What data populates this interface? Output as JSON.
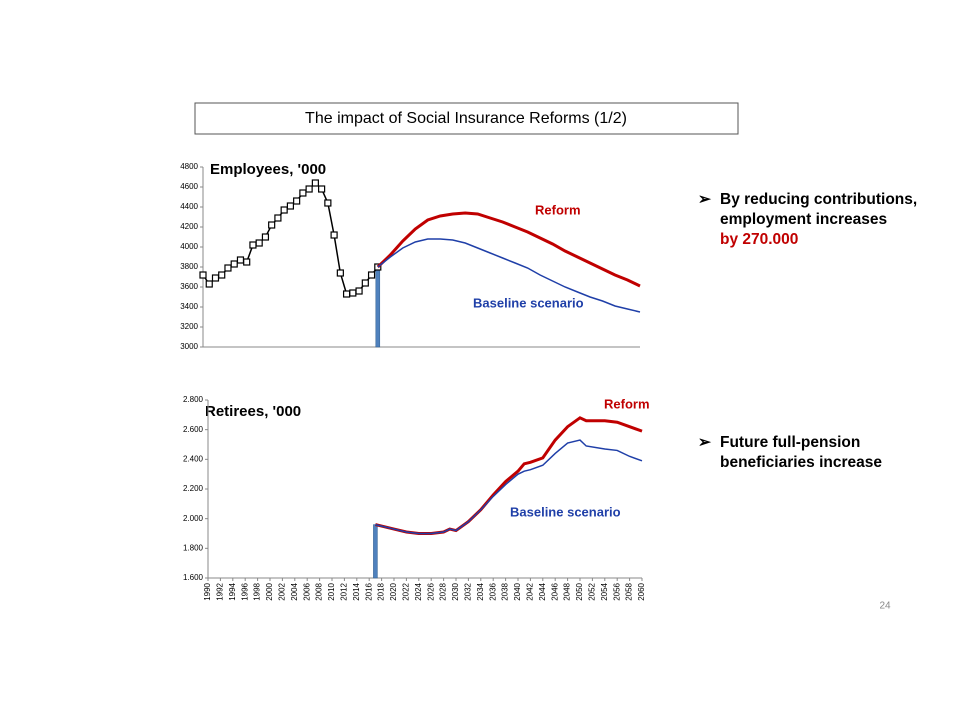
{
  "title": "The impact of Social Insurance Reforms (1/2)",
  "chart_data": [
    {
      "type": "line",
      "title": "Employees, '000",
      "ylim": [
        3000,
        4800
      ],
      "yticks": [
        3000,
        3200,
        3400,
        3600,
        3800,
        4000,
        4200,
        4400,
        4600,
        4800
      ],
      "xlim": [
        1990,
        2060
      ],
      "marker": {
        "x": 2018,
        "value": 3800,
        "color": "#4f81bd"
      },
      "series": [
        {
          "color": "#000000",
          "markers": true,
          "x": [
            1990,
            1991,
            1992,
            1993,
            1994,
            1995,
            1996,
            1997,
            1998,
            1999,
            2000,
            2001,
            2002,
            2003,
            2004,
            2005,
            2006,
            2007,
            2008,
            2009,
            2010,
            2011,
            2012,
            2013,
            2014,
            2015,
            2016,
            2017,
            2018
          ],
          "values": [
            3720,
            3630,
            3690,
            3720,
            3790,
            3830,
            3870,
            3850,
            4020,
            4040,
            4100,
            4220,
            4290,
            4370,
            4410,
            4460,
            4540,
            4580,
            4640,
            4580,
            4440,
            4120,
            3740,
            3530,
            3540,
            3560,
            3640,
            3720,
            3800
          ]
        },
        {
          "name": "Reform",
          "color": "#c00000",
          "width": 3,
          "x": [
            2018,
            2020,
            2022,
            2024,
            2026,
            2028,
            2030,
            2032,
            2034,
            2036,
            2038,
            2040,
            2042,
            2044,
            2046,
            2048,
            2050,
            2052,
            2054,
            2056,
            2058,
            2060
          ],
          "values": [
            3800,
            3920,
            4060,
            4180,
            4270,
            4310,
            4330,
            4340,
            4330,
            4290,
            4250,
            4200,
            4150,
            4090,
            4030,
            3960,
            3900,
            3840,
            3780,
            3720,
            3670,
            3610
          ]
        },
        {
          "name": "Baseline scenario",
          "color": "#1f3fa8",
          "width": 1.5,
          "x": [
            2018,
            2020,
            2022,
            2024,
            2026,
            2028,
            2030,
            2032,
            2034,
            2036,
            2038,
            2040,
            2042,
            2044,
            2046,
            2048,
            2050,
            2052,
            2054,
            2056,
            2058,
            2060
          ],
          "values": [
            3800,
            3900,
            3990,
            4050,
            4080,
            4080,
            4070,
            4040,
            3990,
            3940,
            3890,
            3840,
            3790,
            3720,
            3660,
            3600,
            3550,
            3500,
            3460,
            3410,
            3380,
            3350
          ]
        }
      ]
    },
    {
      "type": "line",
      "title": "Retirees, '000",
      "ylim": [
        1600,
        2800
      ],
      "yticks": [
        {
          "value": 1600,
          "label": "1.600"
        },
        {
          "value": 1800,
          "label": "1.800"
        },
        {
          "value": 2000,
          "label": "2.000"
        },
        {
          "value": 2200,
          "label": "2.200"
        },
        {
          "value": 2400,
          "label": "2.400"
        },
        {
          "value": 2600,
          "label": "2.600"
        },
        {
          "value": 2800,
          "label": "2.800"
        }
      ],
      "xlim": [
        1990,
        2060
      ],
      "xticks": [
        1990,
        1992,
        1994,
        1996,
        1998,
        2000,
        2002,
        2004,
        2006,
        2008,
        2010,
        2012,
        2014,
        2016,
        2018,
        2020,
        2022,
        2024,
        2026,
        2028,
        2030,
        2032,
        2034,
        2036,
        2038,
        2040,
        2042,
        2044,
        2046,
        2048,
        2050,
        2052,
        2054,
        2056,
        2058,
        2060
      ],
      "marker": {
        "x": 2017,
        "value": 1960,
        "color": "#4f81bd"
      },
      "series": [
        {
          "name": "Reform",
          "color": "#c00000",
          "width": 3,
          "x": [
            2017,
            2018,
            2020,
            2022,
            2024,
            2026,
            2028,
            2029,
            2030,
            2032,
            2034,
            2036,
            2038,
            2040,
            2041,
            2042,
            2044,
            2046,
            2048,
            2050,
            2051,
            2054,
            2056,
            2058,
            2060
          ],
          "values": [
            1960,
            1950,
            1930,
            1910,
            1900,
            1900,
            1910,
            1930,
            1920,
            1980,
            2060,
            2160,
            2250,
            2320,
            2370,
            2380,
            2410,
            2530,
            2620,
            2680,
            2660,
            2660,
            2650,
            2620,
            2590
          ]
        },
        {
          "name": "Baseline scenario",
          "color": "#1f3fa8",
          "width": 1.5,
          "x": [
            2017,
            2018,
            2020,
            2022,
            2024,
            2026,
            2028,
            2029,
            2030,
            2032,
            2034,
            2036,
            2038,
            2040,
            2041,
            2042,
            2044,
            2046,
            2048,
            2050,
            2051,
            2054,
            2056,
            2058,
            2060
          ],
          "values": [
            1960,
            1950,
            1930,
            1910,
            1900,
            1900,
            1910,
            1930,
            1920,
            1980,
            2060,
            2150,
            2230,
            2300,
            2320,
            2330,
            2360,
            2440,
            2510,
            2530,
            2490,
            2470,
            2460,
            2420,
            2390
          ]
        }
      ]
    }
  ],
  "bullets": [
    {
      "text": "By reducing contributions, employment increases",
      "highlight": "by 270.000"
    },
    {
      "text": "Future full-pension beneficiaries increase"
    }
  ],
  "page_number": "24"
}
